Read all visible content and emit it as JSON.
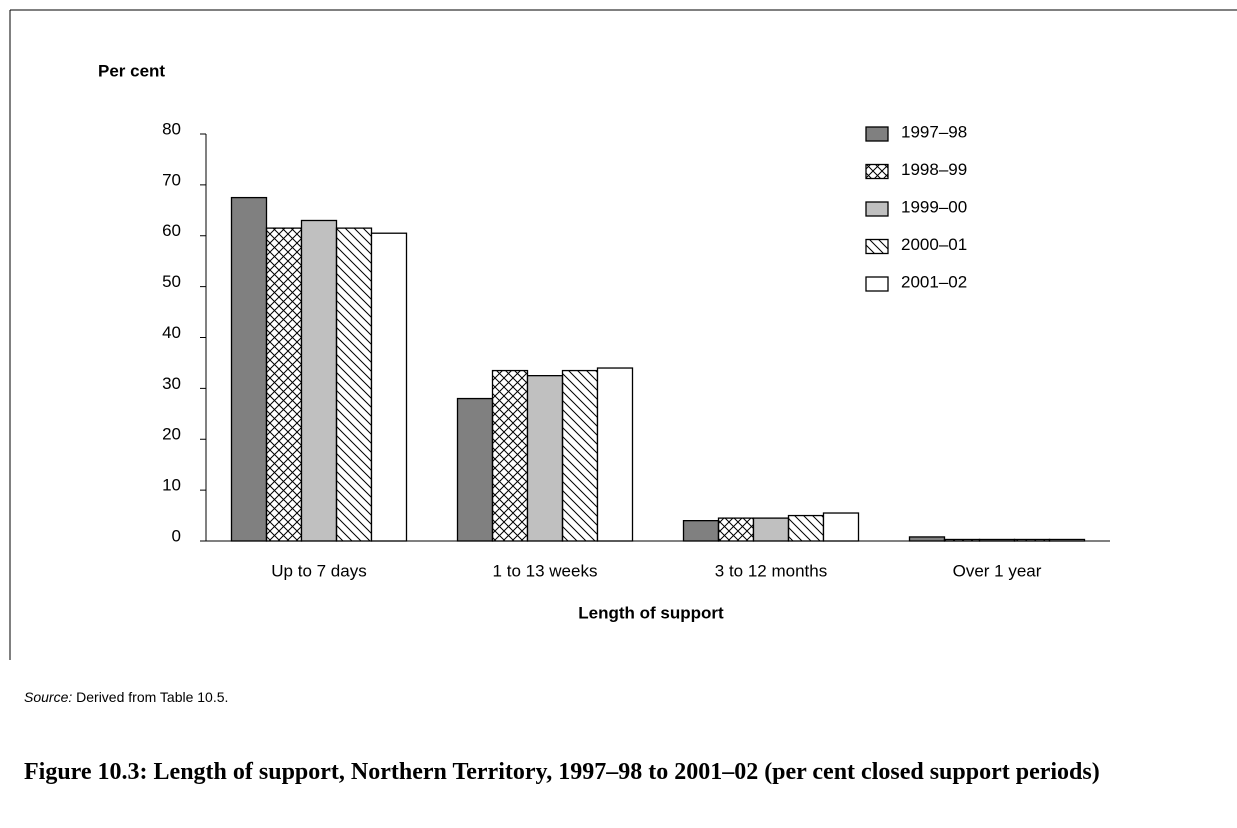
{
  "chart_data": {
    "type": "bar",
    "y_label": "Per cent",
    "x_label": "Length of support",
    "categories": [
      "Up to 7 days",
      "1 to 13 weeks",
      "3 to 12 months",
      "Over 1 year"
    ],
    "series": [
      {
        "name": "1997–98",
        "color": "#808080",
        "pattern": "solid",
        "values": [
          67.5,
          28,
          4,
          0.8
        ]
      },
      {
        "name": "1998–99",
        "color": "#ffffff",
        "pattern": "crosshatch",
        "values": [
          61.5,
          33.5,
          4.5,
          0.3
        ]
      },
      {
        "name": "1999–00",
        "color": "#c0c0c0",
        "pattern": "solid",
        "values": [
          63,
          32.5,
          4.5,
          0.3
        ]
      },
      {
        "name": "2000–01",
        "color": "#ffffff",
        "pattern": "diagonal",
        "values": [
          61.5,
          33.5,
          5,
          0.3
        ]
      },
      {
        "name": "2001–02",
        "color": "#ffffff",
        "pattern": "solid",
        "values": [
          60.5,
          34,
          5.5,
          0.3
        ]
      }
    ],
    "ylim": [
      0,
      80
    ],
    "yticks": [
      0,
      10,
      20,
      30,
      40,
      50,
      60,
      70,
      80
    ],
    "grid": false,
    "legend": "top right",
    "source_label": "Source:",
    "source_text": "Derived from Table 10.5.",
    "caption": "Figure 10.3:  Length of support, Northern Territory, 1997–98 to 2001–02 (per cent closed support periods)"
  }
}
